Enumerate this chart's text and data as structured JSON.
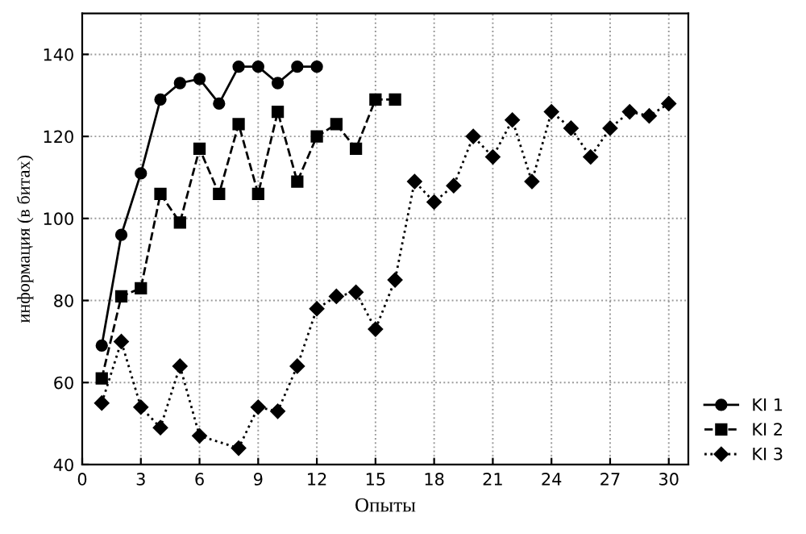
{
  "chart_data": {
    "type": "line",
    "xlabel": "Опыты",
    "ylabel": "информация (в битах)",
    "x": [
      1,
      2,
      3,
      4,
      5,
      6,
      7,
      8,
      9,
      10,
      11,
      12
    ],
    "series": [
      {
        "name": "KI 1",
        "color": "#000000",
        "marker": "circle",
        "line_style": "solid",
        "values": [
          69,
          96,
          111,
          129,
          133,
          134,
          128,
          137,
          137,
          133,
          137,
          137
        ]
      },
      {
        "name": "KI 2",
        "color": "#000000",
        "marker": "square",
        "line_style": "dashed",
        "x": [
          1,
          2,
          3,
          4,
          5,
          6,
          7,
          8,
          9,
          10,
          11,
          12,
          13,
          14,
          15,
          16
        ],
        "values": [
          61,
          81,
          83,
          106,
          99,
          117,
          106,
          123,
          106,
          126,
          109,
          120,
          123,
          117,
          129,
          129
        ]
      },
      {
        "name": "KI 3",
        "color": "#000000",
        "marker": "diamond",
        "line_style": "dotted",
        "x": [
          1,
          2,
          3,
          4,
          5,
          6,
          8,
          9,
          10,
          11,
          12,
          13,
          14,
          15,
          16,
          17,
          18,
          19,
          20,
          21,
          22,
          23,
          24,
          25,
          26,
          27,
          28,
          29,
          30
        ],
        "values": [
          55,
          70,
          54,
          49,
          64,
          47,
          44,
          54,
          53,
          64,
          78,
          81,
          82,
          73,
          85,
          109,
          104,
          108,
          120,
          115,
          124,
          109,
          126,
          122,
          115,
          122,
          126,
          125,
          128
        ]
      }
    ],
    "xlim": [
      0,
      31
    ],
    "xticks": [
      0,
      3,
      6,
      9,
      12,
      15,
      18,
      21,
      24,
      27,
      30
    ],
    "ylim": [
      40,
      150
    ],
    "yticks": [
      40,
      60,
      80,
      100,
      120,
      140
    ],
    "grid": true,
    "legend": "bottom right"
  }
}
